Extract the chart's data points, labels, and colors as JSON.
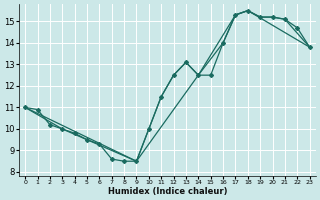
{
  "xlabel": "Humidex (Indice chaleur)",
  "bg_color": "#cce8e8",
  "grid_color": "#ffffff",
  "line_color": "#1a6b60",
  "xlim": [
    -0.5,
    23.5
  ],
  "ylim": [
    7.8,
    15.8
  ],
  "yticks": [
    8,
    9,
    10,
    11,
    12,
    13,
    14,
    15
  ],
  "xticks": [
    0,
    1,
    2,
    3,
    4,
    5,
    6,
    7,
    8,
    9,
    10,
    11,
    12,
    13,
    14,
    15,
    16,
    17,
    18,
    19,
    20,
    21,
    22,
    23
  ],
  "line1_x": [
    0,
    1,
    2,
    3,
    4,
    5,
    6,
    7,
    8,
    9,
    10,
    11,
    12,
    13,
    14,
    15,
    16,
    17,
    18,
    19,
    20,
    21,
    22,
    23
  ],
  "line1_y": [
    11.0,
    10.9,
    10.2,
    10.0,
    9.8,
    9.5,
    9.3,
    8.6,
    8.5,
    8.5,
    10.0,
    11.5,
    12.5,
    13.1,
    12.5,
    12.5,
    14.0,
    15.3,
    15.5,
    15.2,
    15.2,
    15.1,
    14.7,
    13.8
  ],
  "line2_x": [
    0,
    3,
    9,
    10,
    11,
    12,
    13,
    14,
    16,
    17,
    18,
    19,
    20,
    21,
    23
  ],
  "line2_y": [
    11.0,
    10.0,
    8.5,
    10.0,
    11.5,
    12.5,
    13.1,
    12.5,
    14.0,
    15.3,
    15.5,
    15.2,
    15.2,
    15.1,
    13.8
  ],
  "line3_x": [
    0,
    9,
    14,
    17,
    18,
    23
  ],
  "line3_y": [
    11.0,
    8.5,
    12.5,
    15.3,
    15.5,
    13.8
  ]
}
